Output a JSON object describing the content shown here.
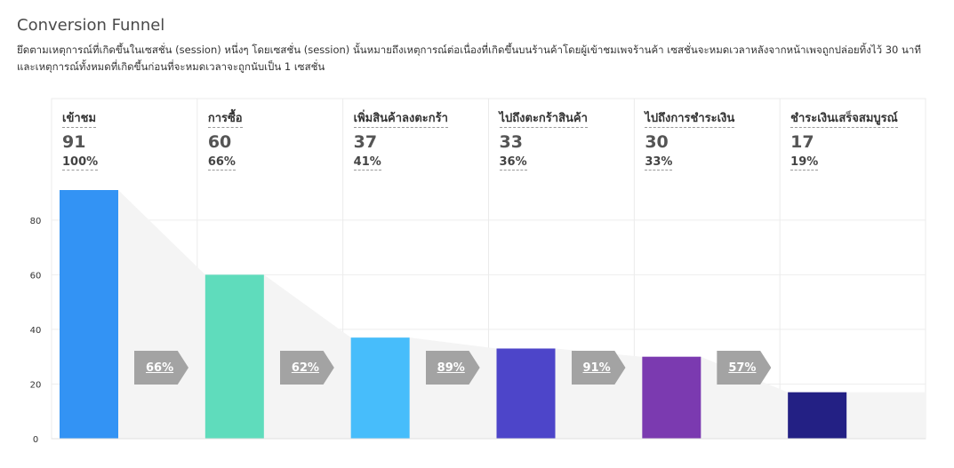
{
  "title": "Conversion Funnel",
  "description": "ยึดตามเหตุการณ์ที่เกิดขึ้นในเซสชั่น (session) หนึ่งๆ โดยเซสชั่น (session) นั้นหมายถึงเหตุการณ์ต่อเนื่องที่เกิดขึ้นบนร้านค้าโดยผู้เข้าชมเพจร้านค้า เซสชั่นจะหมดเวลาหลังจากหน้าเพจถูกปล่อยทิ้งไว้ 30 นาที และเหตุการณ์ทั้งหมดที่เกิดขึ้นก่อนที่จะหมดเวลาจะถูกนับเป็น 1 เซสชั่น",
  "stages": [
    {
      "label": "เข้าชม",
      "count": "91",
      "percent": "100%"
    },
    {
      "label": "การซื้อ",
      "count": "60",
      "percent": "66%"
    },
    {
      "label": "เพิ่มสินค้าลงตะกร้า",
      "count": "37",
      "percent": "41%"
    },
    {
      "label": "ไปถึงตะกร้าสินค้า",
      "count": "33",
      "percent": "36%"
    },
    {
      "label": "ไปถึงการชำระเงิน",
      "count": "30",
      "percent": "33%"
    },
    {
      "label": "ชำระเงินเสร็จสมบูรณ์",
      "count": "17",
      "percent": "19%"
    }
  ],
  "conversions": [
    "66%",
    "62%",
    "89%",
    "91%",
    "57%"
  ],
  "chart_data": {
    "type": "bar",
    "categories": [
      "เข้าชม",
      "การซื้อ",
      "เพิ่มสินค้าลงตะกร้า",
      "ไปถึงตะกร้าสินค้า",
      "ไปถึงการชำระเงิน",
      "ชำระเงินเสร็จสมบูรณ์"
    ],
    "values": [
      91,
      60,
      37,
      33,
      30,
      17
    ],
    "colors": [
      "#3393f4",
      "#5fdcbc",
      "#47bdfb",
      "#4d45c9",
      "#7b3ab0",
      "#232084"
    ],
    "yticks": [
      0,
      20,
      40,
      60,
      80
    ],
    "ylim": [
      0,
      91
    ],
    "grid": true,
    "legend": "none"
  }
}
